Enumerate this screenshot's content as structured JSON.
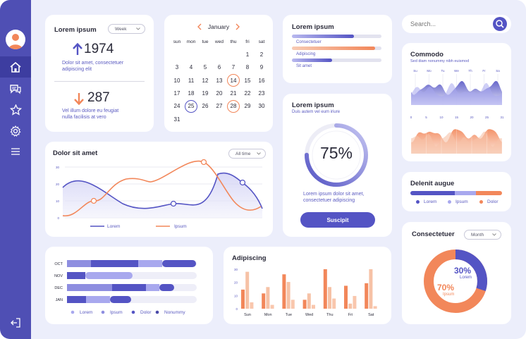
{
  "colors": {
    "primary": "#5454c4",
    "light": "#a8a8ee",
    "orange": "#f2875a",
    "peach": "#f6c2a6",
    "bg": "#eceefb"
  },
  "sidebar": {
    "icons": [
      "user-avatar",
      "home-icon",
      "chat-icon",
      "star-icon",
      "settings-icon",
      "menu-icon",
      "logout-icon"
    ]
  },
  "stats": {
    "title": "Lorem ipsum",
    "period": "Week",
    "up_value": "1974",
    "up_text_1": "Dolor sit amet, consectetuer",
    "up_text_2": "adipiscing elit",
    "down_value": "287",
    "down_text_1": "Vel illum dolore eu feugiat",
    "down_text_2": "nulla facilisis at vero"
  },
  "calendar": {
    "month": "January",
    "weekdays": [
      "sun",
      "mon",
      "tue",
      "wed",
      "thu",
      "fri",
      "sat"
    ],
    "weeks": [
      [
        "",
        "",
        "",
        "",
        "",
        "1",
        "2"
      ],
      [
        "3",
        "4",
        "5",
        "6",
        "7",
        "8",
        "9"
      ],
      [
        "10",
        "11",
        "12",
        "13",
        "14",
        "15",
        "16"
      ],
      [
        "17",
        "18",
        "19",
        "20",
        "21",
        "22",
        "23"
      ],
      [
        "24",
        "25",
        "26",
        "27",
        "28",
        "29",
        "30"
      ],
      [
        "31",
        "",
        "",
        "",
        "",
        "",
        ""
      ]
    ],
    "highlight_orange": [
      "14",
      "28"
    ],
    "highlight_blue": [
      "25"
    ]
  },
  "bars_card": {
    "title": "Lorem ipsum",
    "items": [
      {
        "label": "Consectetuer",
        "fill": 0.69,
        "color": "primary"
      },
      {
        "label": "Adipiscing",
        "fill": 0.93,
        "color": "orange"
      },
      {
        "label": "Sit amet",
        "fill": 0.45,
        "color": "primary"
      }
    ]
  },
  "search": {
    "placeholder": "Search..."
  },
  "commodo": {
    "title": "Commodo",
    "subtitle": "Sed diam nonummy nibh euismod",
    "top_ticks": [
      "Su",
      "Mo",
      "Tu",
      "We",
      "Th",
      "Fr",
      "Sa"
    ],
    "bottom_ticks": [
      "0",
      "5",
      "10",
      "15",
      "20",
      "25",
      "31"
    ]
  },
  "line_chart": {
    "title": "Dolor sit amet",
    "filter": "All time",
    "y_ticks": [
      "30",
      "20",
      "10",
      "0"
    ],
    "legend": [
      "Lorem",
      "Ipsum"
    ]
  },
  "gauge": {
    "title": "Lorem ipsum",
    "subtitle": "Duis autem vel eum iriure",
    "value_label": "75%",
    "value": 0.75,
    "text_1": "Lorem ipsum dolor sit amet,",
    "text_2": "consectetuer adipiscing",
    "button": "Suscipit"
  },
  "delenit": {
    "title": "Delenit augue",
    "legend": [
      "Lorem",
      "Ipsum",
      "Dolor"
    ]
  },
  "stacked": {
    "rows": [
      "OCT",
      "NOV",
      "DEC",
      "JAN"
    ],
    "legend": [
      "Lorem",
      "Ipsum",
      "Dolor",
      "Nonummy"
    ]
  },
  "adipiscing": {
    "title": "Adipiscing",
    "y_ticks": [
      "30",
      "20",
      "10",
      "0"
    ],
    "days": [
      "Sun",
      "Mon",
      "Tue",
      "Wed",
      "Thu",
      "Fri",
      "Sat"
    ]
  },
  "donut": {
    "title": "Consectetuer",
    "filter": "Month",
    "a_value": "30%",
    "a_label": "Lorem",
    "b_value": "70%",
    "b_label": "Ipsum",
    "a_fraction": 0.3
  }
}
